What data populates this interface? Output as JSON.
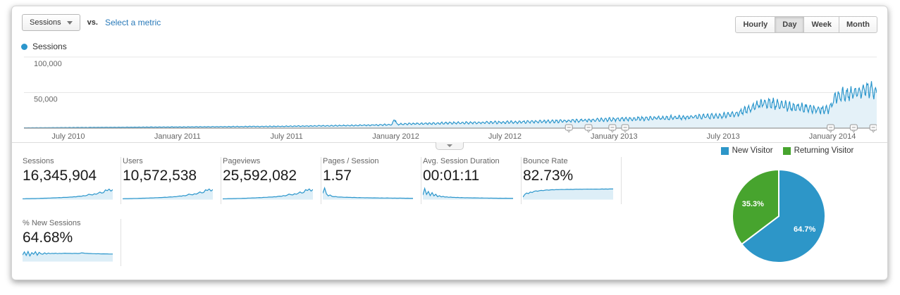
{
  "header": {
    "metric_selector_label": "Sessions",
    "vs_label": "vs.",
    "select_metric_label": "Select a metric",
    "granularity_options": [
      {
        "label": "Hourly",
        "active": false
      },
      {
        "label": "Day",
        "active": true
      },
      {
        "label": "Week",
        "active": false
      },
      {
        "label": "Month",
        "active": false
      }
    ]
  },
  "legend": {
    "series_label": "Sessions"
  },
  "colors": {
    "line_blue": "#2b96cc",
    "area_fill": "rgba(43,150,204,0.13)",
    "spark_fill": "rgba(43,150,204,0.16)",
    "pie_blue": "#2d96c8",
    "pie_green": "#47a42e",
    "grid": "#e7e7e7",
    "axis": "#999999",
    "tick_text": "#666666",
    "link_blue": "#2a7ab9"
  },
  "chart_data": [
    {
      "id": "sessions-over-time",
      "type": "area",
      "series_name": "Sessions",
      "granularity": "Day",
      "x_range": [
        "April 2010",
        "April 2014"
      ],
      "ylim": [
        0,
        110000
      ],
      "grid": true,
      "yticks": [
        {
          "value": 50000,
          "label": "50,000"
        },
        {
          "value": 100000,
          "label": "100,000"
        }
      ],
      "xticks": [
        {
          "pos": 0.052,
          "label": "July 2010"
        },
        {
          "pos": 0.18,
          "label": "January 2011"
        },
        {
          "pos": 0.308,
          "label": "July 2011"
        },
        {
          "pos": 0.436,
          "label": "January 2012"
        },
        {
          "pos": 0.564,
          "label": "July 2012"
        },
        {
          "pos": 0.692,
          "label": "January 2013"
        },
        {
          "pos": 0.82,
          "label": "July 2013"
        },
        {
          "pos": 0.948,
          "label": "January 2014"
        }
      ],
      "trend_anchors": [
        [
          0.0,
          400
        ],
        [
          0.052,
          800
        ],
        [
          0.18,
          1600
        ],
        [
          0.308,
          2600
        ],
        [
          0.4,
          4000
        ],
        [
          0.432,
          5000
        ],
        [
          0.4345,
          15000
        ],
        [
          0.437,
          5600
        ],
        [
          0.5,
          7200
        ],
        [
          0.564,
          8200
        ],
        [
          0.62,
          9500
        ],
        [
          0.66,
          11000
        ],
        [
          0.692,
          12500
        ],
        [
          0.73,
          13500
        ],
        [
          0.78,
          15500
        ],
        [
          0.82,
          17500
        ],
        [
          0.835,
          20000
        ],
        [
          0.855,
          30000
        ],
        [
          0.87,
          36000
        ],
        [
          0.885,
          33000
        ],
        [
          0.9,
          30000
        ],
        [
          0.925,
          27000
        ],
        [
          0.944,
          26000
        ],
        [
          0.95,
          42000
        ],
        [
          0.96,
          47000
        ],
        [
          0.975,
          50000
        ],
        [
          0.99,
          56000
        ],
        [
          1.0,
          50000
        ]
      ],
      "weekly_amplitude": 0.17,
      "noise_amplitude": 0.09,
      "annotation_marker_positions": [
        0.639,
        0.662,
        0.69,
        0.705,
        0.946,
        0.973,
        0.996
      ]
    },
    {
      "id": "visitor-type-pie",
      "type": "pie",
      "slices": [
        {
          "label": "New Visitor",
          "value": 64.7,
          "display": "64.7%",
          "color": "#2d96c8"
        },
        {
          "label": "Returning Visitor",
          "value": 35.3,
          "display": "35.3%",
          "color": "#47a42e"
        }
      ]
    }
  ],
  "cards": [
    {
      "label": "Sessions",
      "value": "16,345,904",
      "spark": [
        0.04,
        0.04,
        0.05,
        0.05,
        0.05,
        0.06,
        0.06,
        0.06,
        0.07,
        0.07,
        0.08,
        0.08,
        0.09,
        0.09,
        0.1,
        0.1,
        0.11,
        0.12,
        0.12,
        0.13,
        0.14,
        0.13,
        0.15,
        0.16,
        0.15,
        0.17,
        0.19,
        0.18,
        0.21,
        0.2,
        0.24,
        0.26,
        0.25,
        0.3,
        0.28,
        0.33,
        0.42,
        0.38,
        0.36,
        0.45,
        0.42,
        0.5,
        0.6,
        0.52,
        0.55,
        0.78,
        0.72,
        0.85,
        0.68,
        0.8
      ]
    },
    {
      "label": "Users",
      "value": "10,572,538",
      "spark": [
        0.04,
        0.05,
        0.05,
        0.05,
        0.06,
        0.06,
        0.07,
        0.07,
        0.07,
        0.08,
        0.08,
        0.09,
        0.09,
        0.1,
        0.1,
        0.11,
        0.11,
        0.12,
        0.13,
        0.13,
        0.14,
        0.14,
        0.15,
        0.17,
        0.16,
        0.18,
        0.2,
        0.19,
        0.22,
        0.21,
        0.25,
        0.27,
        0.26,
        0.31,
        0.29,
        0.34,
        0.43,
        0.39,
        0.37,
        0.46,
        0.43,
        0.51,
        0.61,
        0.53,
        0.56,
        0.79,
        0.73,
        0.86,
        0.69,
        0.81
      ]
    },
    {
      "label": "Pageviews",
      "value": "25,592,082",
      "spark": [
        0.03,
        0.04,
        0.04,
        0.05,
        0.05,
        0.05,
        0.06,
        0.06,
        0.07,
        0.07,
        0.07,
        0.08,
        0.08,
        0.09,
        0.1,
        0.1,
        0.11,
        0.11,
        0.12,
        0.13,
        0.14,
        0.13,
        0.15,
        0.16,
        0.16,
        0.18,
        0.19,
        0.18,
        0.21,
        0.2,
        0.24,
        0.26,
        0.25,
        0.31,
        0.28,
        0.34,
        0.43,
        0.38,
        0.36,
        0.46,
        0.42,
        0.5,
        0.61,
        0.52,
        0.56,
        0.8,
        0.73,
        0.86,
        0.68,
        0.82
      ]
    },
    {
      "label": "Pages / Session",
      "value": "1.57",
      "spark": [
        0.5,
        0.95,
        0.45,
        0.28,
        0.36,
        0.24,
        0.21,
        0.23,
        0.19,
        0.18,
        0.19,
        0.17,
        0.16,
        0.17,
        0.15,
        0.16,
        0.14,
        0.15,
        0.14,
        0.13,
        0.14,
        0.13,
        0.13,
        0.12,
        0.13,
        0.12,
        0.12,
        0.11,
        0.12,
        0.11,
        0.11,
        0.1,
        0.11,
        0.1,
        0.1,
        0.11,
        0.1,
        0.1,
        0.09,
        0.1,
        0.09,
        0.09,
        0.1,
        0.09,
        0.09,
        0.08,
        0.09,
        0.08,
        0.08,
        0.08
      ]
    },
    {
      "label": "Avg. Session Duration",
      "value": "00:01:11",
      "spark": [
        0.35,
        0.9,
        0.4,
        0.65,
        0.3,
        0.55,
        0.28,
        0.42,
        0.22,
        0.3,
        0.2,
        0.24,
        0.18,
        0.2,
        0.16,
        0.18,
        0.15,
        0.16,
        0.14,
        0.15,
        0.13,
        0.14,
        0.13,
        0.12,
        0.13,
        0.12,
        0.12,
        0.11,
        0.12,
        0.11,
        0.11,
        0.1,
        0.11,
        0.1,
        0.1,
        0.1,
        0.09,
        0.1,
        0.09,
        0.09,
        0.09,
        0.08,
        0.09,
        0.08,
        0.08,
        0.09,
        0.08,
        0.08,
        0.08,
        0.08
      ]
    },
    {
      "label": "Bounce Rate",
      "value": "82.73%",
      "spark": [
        0.18,
        0.4,
        0.52,
        0.47,
        0.6,
        0.56,
        0.66,
        0.7,
        0.67,
        0.72,
        0.74,
        0.72,
        0.76,
        0.78,
        0.76,
        0.79,
        0.8,
        0.78,
        0.81,
        0.8,
        0.81,
        0.82,
        0.81,
        0.82,
        0.83,
        0.82,
        0.83,
        0.82,
        0.83,
        0.84,
        0.83,
        0.84,
        0.83,
        0.84,
        0.84,
        0.85,
        0.84,
        0.85,
        0.84,
        0.85,
        0.85,
        0.84,
        0.85,
        0.86,
        0.85,
        0.86,
        0.85,
        0.86,
        0.86,
        0.86
      ]
    },
    {
      "label": "% New Sessions",
      "value": "64.68%",
      "spark": [
        0.52,
        0.78,
        0.48,
        0.82,
        0.44,
        0.72,
        0.58,
        0.8,
        0.5,
        0.74,
        0.62,
        0.58,
        0.7,
        0.6,
        0.68,
        0.63,
        0.66,
        0.64,
        0.67,
        0.63,
        0.66,
        0.64,
        0.66,
        0.67,
        0.65,
        0.66,
        0.65,
        0.64,
        0.66,
        0.65,
        0.64,
        0.65,
        0.7,
        0.68,
        0.66,
        0.65,
        0.64,
        0.64,
        0.63,
        0.63,
        0.62,
        0.63,
        0.62,
        0.61,
        0.62,
        0.61,
        0.61,
        0.6,
        0.6,
        0.6
      ]
    }
  ]
}
